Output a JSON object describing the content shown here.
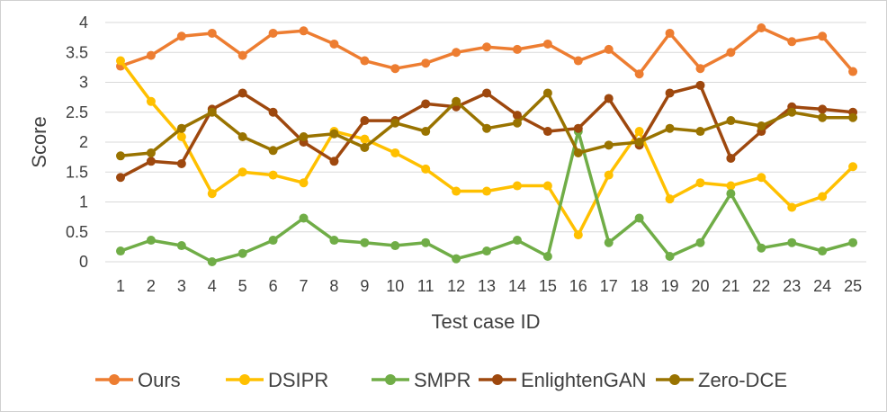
{
  "chart_data": {
    "type": "line",
    "title": "",
    "xlabel": "Test case ID",
    "ylabel": "Score",
    "ylim": [
      0,
      4
    ],
    "yticks": [
      "0",
      "0.5",
      "1",
      "1.5",
      "2",
      "2.5",
      "3",
      "3.5",
      "4"
    ],
    "grid": "horizontal",
    "legend_position": "bottom",
    "categories": [
      "1",
      "2",
      "3",
      "4",
      "5",
      "6",
      "7",
      "8",
      "9",
      "10",
      "11",
      "12",
      "13",
      "14",
      "15",
      "16",
      "17",
      "18",
      "19",
      "20",
      "21",
      "22",
      "23",
      "24",
      "25"
    ],
    "series": [
      {
        "name": "Ours",
        "color": "#ED7D31",
        "values": [
          3.27,
          3.45,
          3.77,
          3.82,
          3.45,
          3.82,
          3.86,
          3.64,
          3.36,
          3.23,
          3.32,
          3.5,
          3.59,
          3.55,
          3.64,
          3.36,
          3.55,
          3.14,
          3.82,
          3.23,
          3.5,
          3.91,
          3.68,
          3.77,
          3.18
        ]
      },
      {
        "name": "DSIPR",
        "color": "#FFC000",
        "values": [
          3.36,
          2.68,
          2.09,
          1.14,
          1.5,
          1.45,
          1.32,
          2.18,
          2.05,
          1.82,
          1.55,
          1.18,
          1.18,
          1.27,
          1.27,
          0.45,
          1.45,
          2.18,
          1.05,
          1.32,
          1.27,
          1.41,
          0.91,
          1.09,
          1.59
        ]
      },
      {
        "name": "SMPR",
        "color": "#70AD47",
        "values": [
          0.18,
          0.36,
          0.27,
          0.0,
          0.14,
          0.36,
          0.73,
          0.36,
          0.32,
          0.27,
          0.32,
          0.05,
          0.18,
          0.36,
          0.09,
          2.18,
          0.32,
          0.73,
          0.09,
          0.32,
          1.14,
          0.23,
          0.32,
          0.18,
          0.32
        ]
      },
      {
        "name": "EnlightenGAN",
        "color": "#9E480E",
        "values": [
          1.41,
          1.68,
          1.64,
          2.55,
          2.82,
          2.5,
          2.0,
          1.68,
          2.36,
          2.36,
          2.64,
          2.59,
          2.82,
          2.45,
          2.18,
          2.23,
          2.73,
          1.95,
          2.82,
          2.95,
          1.73,
          2.18,
          2.59,
          2.55,
          2.5
        ]
      },
      {
        "name": "Zero-DCE",
        "color": "#997300",
        "values": [
          1.77,
          1.82,
          2.23,
          2.5,
          2.09,
          1.86,
          2.09,
          2.14,
          1.91,
          2.32,
          2.18,
          2.68,
          2.23,
          2.32,
          2.82,
          1.82,
          1.95,
          2.0,
          2.23,
          2.18,
          2.36,
          2.27,
          2.5,
          2.41,
          2.41
        ]
      }
    ]
  }
}
